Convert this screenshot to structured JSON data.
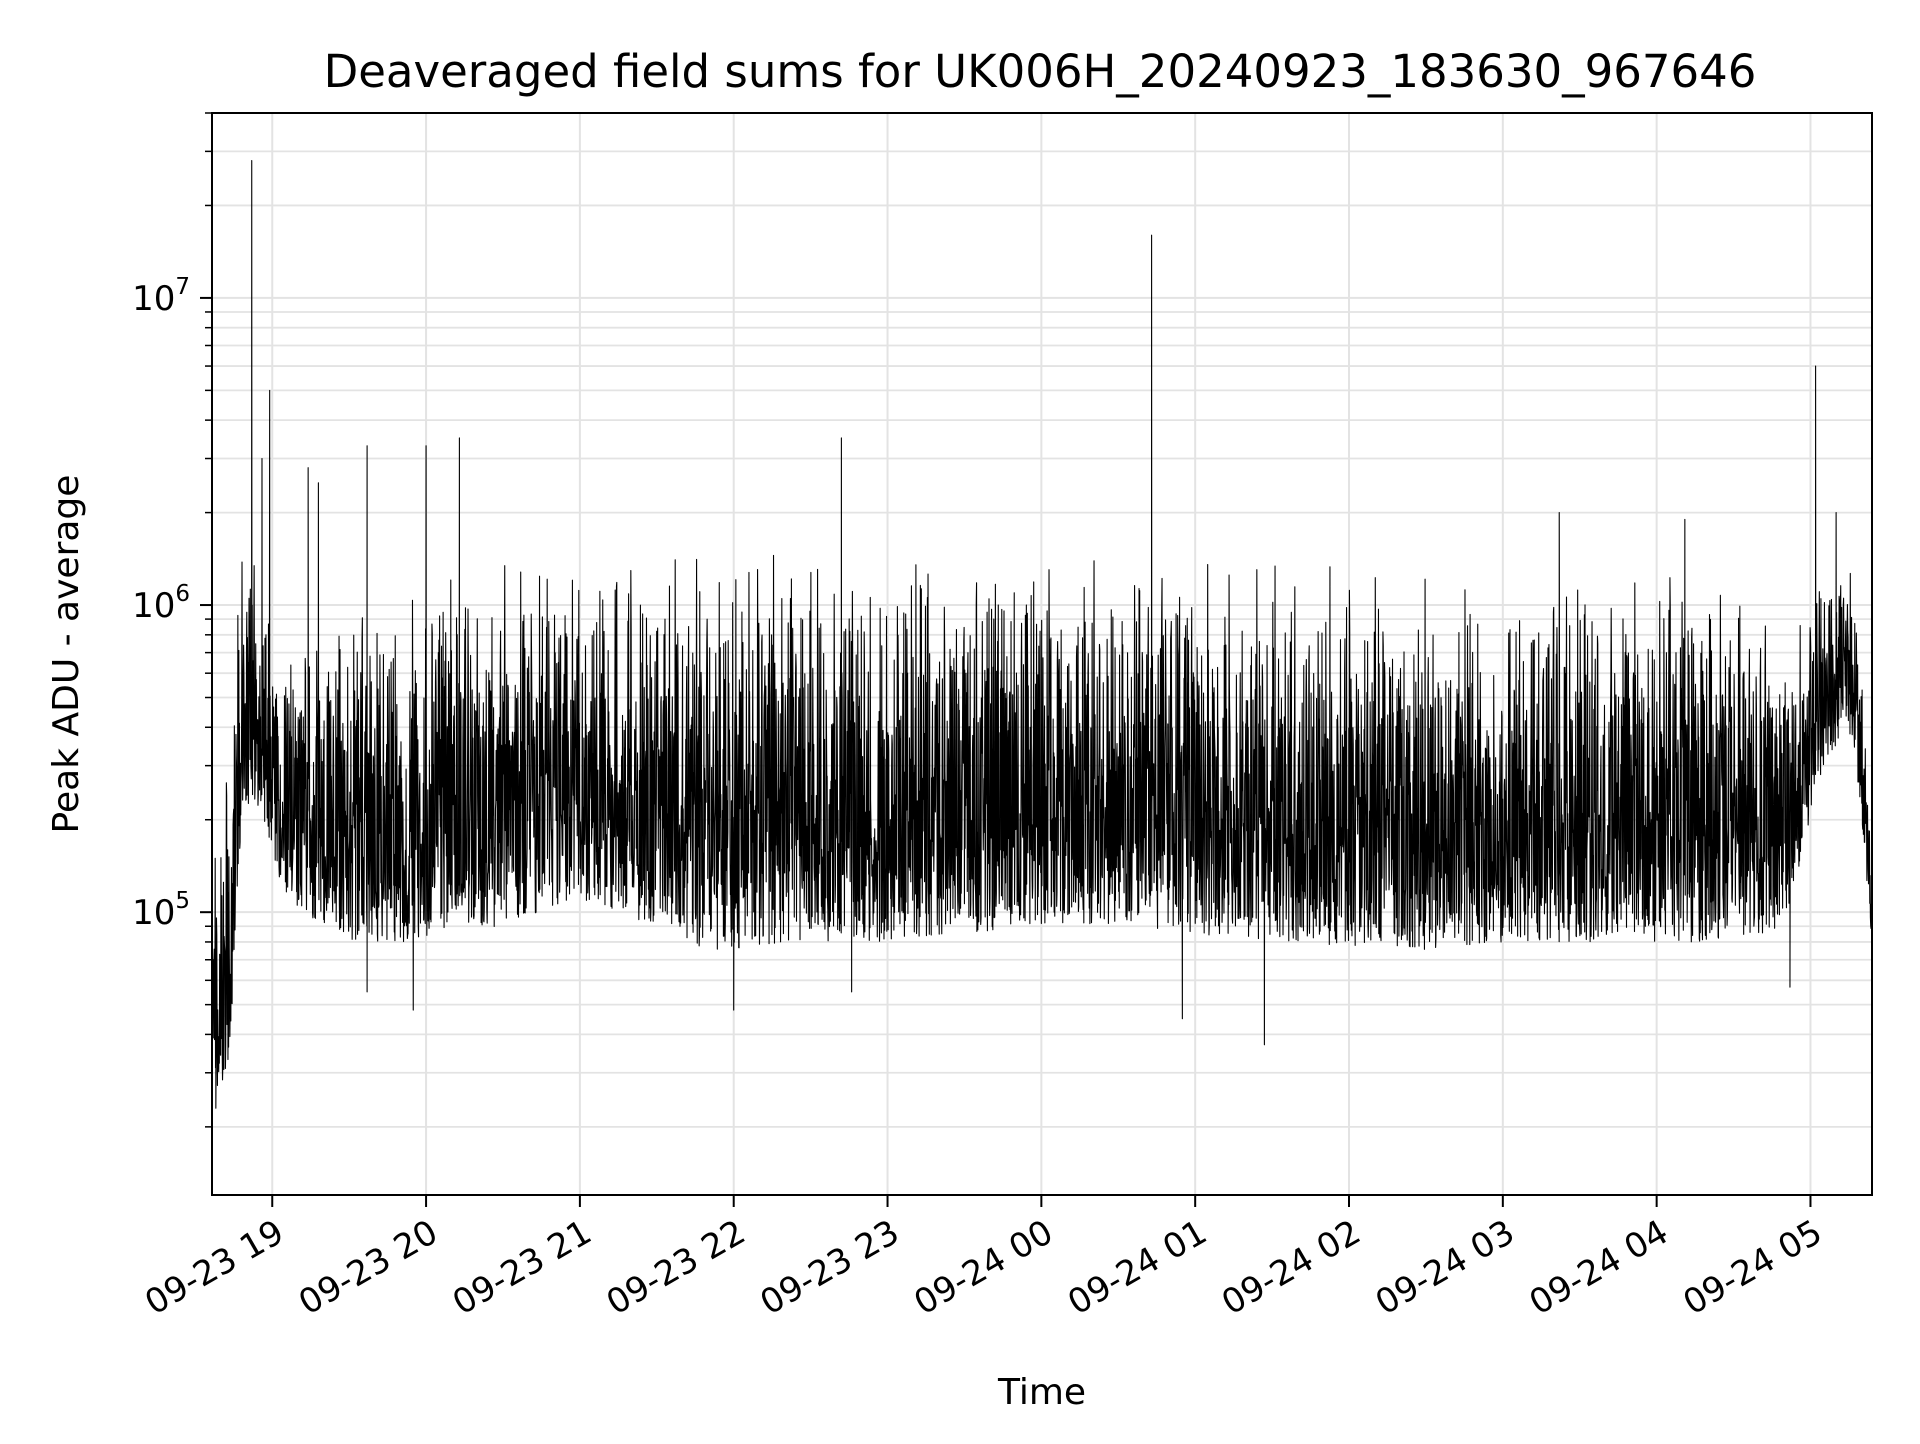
{
  "chart_data": {
    "type": "line",
    "title": "Deaveraged field sums for UK006H_20240923_183630_967646",
    "xlabel": "Time",
    "ylabel": "Peak ADU - average",
    "x_axis": {
      "kind": "datetime",
      "range": [
        "2024-09-23T18:36:30",
        "2024-09-24T05:24:00"
      ],
      "ticks": [
        {
          "value": "2024-09-23T19:00",
          "label": "09-23 19"
        },
        {
          "value": "2024-09-23T20:00",
          "label": "09-23 20"
        },
        {
          "value": "2024-09-23T21:00",
          "label": "09-23 21"
        },
        {
          "value": "2024-09-23T22:00",
          "label": "09-23 22"
        },
        {
          "value": "2024-09-23T23:00",
          "label": "09-23 23"
        },
        {
          "value": "2024-09-24T00:00",
          "label": "09-24 00"
        },
        {
          "value": "2024-09-24T01:00",
          "label": "09-24 01"
        },
        {
          "value": "2024-09-24T02:00",
          "label": "09-24 02"
        },
        {
          "value": "2024-09-24T03:00",
          "label": "09-24 03"
        },
        {
          "value": "2024-09-24T04:00",
          "label": "09-24 04"
        },
        {
          "value": "2024-09-24T05:00",
          "label": "09-24 05"
        }
      ]
    },
    "y_axis": {
      "scale": "log",
      "range": [
        12000,
        40000000
      ],
      "ticks": [
        {
          "value": 100000,
          "base": "10",
          "exp": "5"
        },
        {
          "value": 1000000,
          "base": "10",
          "exp": "6"
        },
        {
          "value": 10000000,
          "base": "10",
          "exp": "7"
        }
      ]
    },
    "grid": true,
    "line_color": "#000000",
    "envelope": [
      {
        "t": "2024-09-23T18:36:30",
        "lo": 25000,
        "hi": 180000
      },
      {
        "t": "2024-09-23T18:43",
        "lo": 30000,
        "hi": 400000
      },
      {
        "t": "2024-09-23T18:48",
        "lo": 200000,
        "hi": 1800000
      },
      {
        "t": "2024-09-23T18:55",
        "lo": 220000,
        "hi": 1500000
      },
      {
        "t": "2024-09-23T19:05",
        "lo": 110000,
        "hi": 700000
      },
      {
        "t": "2024-09-23T19:30",
        "lo": 80000,
        "hi": 1000000
      },
      {
        "t": "2024-09-23T20:00",
        "lo": 80000,
        "hi": 1300000
      },
      {
        "t": "2024-09-23T20:30",
        "lo": 90000,
        "hi": 1400000
      },
      {
        "t": "2024-09-23T21:00",
        "lo": 110000,
        "hi": 1400000
      },
      {
        "t": "2024-09-23T21:30",
        "lo": 90000,
        "hi": 1450000
      },
      {
        "t": "2024-09-23T21:50",
        "lo": 75000,
        "hi": 1500000
      },
      {
        "t": "2024-09-23T22:30",
        "lo": 80000,
        "hi": 1500000
      },
      {
        "t": "2024-09-23T23:00",
        "lo": 80000,
        "hi": 1400000
      },
      {
        "t": "2024-09-24T00:00",
        "lo": 90000,
        "hi": 1450000
      },
      {
        "t": "2024-09-24T00:30",
        "lo": 90000,
        "hi": 1400000
      },
      {
        "t": "2024-09-24T01:30",
        "lo": 80000,
        "hi": 1400000
      },
      {
        "t": "2024-09-24T02:30",
        "lo": 75000,
        "hi": 1300000
      },
      {
        "t": "2024-09-24T03:00",
        "lo": 80000,
        "hi": 1000000
      },
      {
        "t": "2024-09-24T03:30",
        "lo": 80000,
        "hi": 1350000
      },
      {
        "t": "2024-09-24T04:30",
        "lo": 80000,
        "hi": 1200000
      },
      {
        "t": "2024-09-24T04:50",
        "lo": 90000,
        "hi": 900000
      },
      {
        "t": "2024-09-24T05:05",
        "lo": 300000,
        "hi": 1200000
      },
      {
        "t": "2024-09-24T05:15",
        "lo": 400000,
        "hi": 1500000
      },
      {
        "t": "2024-09-24T05:20",
        "lo": 200000,
        "hi": 700000
      },
      {
        "t": "2024-09-24T05:24",
        "lo": 80000,
        "hi": 150000
      }
    ],
    "spikes": [
      {
        "t": "2024-09-23T18:52",
        "value": 28000000
      },
      {
        "t": "2024-09-23T18:59",
        "value": 5000000
      },
      {
        "t": "2024-09-23T18:56",
        "value": 3000000
      },
      {
        "t": "2024-09-23T19:14",
        "value": 2800000
      },
      {
        "t": "2024-09-23T19:18",
        "value": 2500000
      },
      {
        "t": "2024-09-23T19:37",
        "value": 3300000
      },
      {
        "t": "2024-09-23T20:00",
        "value": 3300000
      },
      {
        "t": "2024-09-23T20:13",
        "value": 3500000
      },
      {
        "t": "2024-09-23T22:42",
        "value": 3500000
      },
      {
        "t": "2024-09-24T00:43",
        "value": 16000000
      },
      {
        "t": "2024-09-24T03:22",
        "value": 2000000
      },
      {
        "t": "2024-09-24T04:11",
        "value": 1900000
      },
      {
        "t": "2024-09-24T05:02",
        "value": 6000000
      },
      {
        "t": "2024-09-24T05:10",
        "value": 2000000
      }
    ],
    "dips": [
      {
        "t": "2024-09-23T18:38",
        "value": 23000.0
      },
      {
        "t": "2024-09-23T19:37",
        "value": 55000
      },
      {
        "t": "2024-09-23T19:55",
        "value": 48000
      },
      {
        "t": "2024-09-23T22:00",
        "value": 48000
      },
      {
        "t": "2024-09-23T22:46",
        "value": 55000
      },
      {
        "t": "2024-09-24T00:55",
        "value": 45000
      },
      {
        "t": "2024-09-24T01:27",
        "value": 37000
      },
      {
        "t": "2024-09-24T04:52",
        "value": 57000
      }
    ]
  }
}
